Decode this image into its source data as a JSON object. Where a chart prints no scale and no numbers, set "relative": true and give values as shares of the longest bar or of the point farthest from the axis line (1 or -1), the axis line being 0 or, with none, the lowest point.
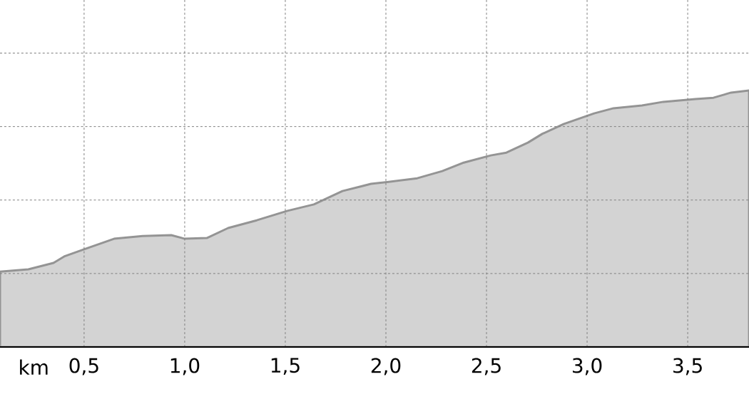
{
  "chart_data": {
    "type": "area",
    "relative": true,
    "xlabel": "km",
    "color": "#d3d3d3",
    "grid": true,
    "x": [
      0.082,
      0.223,
      0.348,
      0.401,
      0.5,
      0.649,
      0.791,
      0.933,
      1.0,
      1.11,
      1.216,
      1.358,
      1.511,
      1.642,
      1.784,
      1.926,
      2.014,
      2.156,
      2.28,
      2.387,
      2.521,
      2.599,
      2.706,
      2.777,
      2.883,
      3.035,
      3.131,
      3.273,
      3.379,
      3.539,
      3.628,
      3.716,
      3.805
    ],
    "values": [
      0.294,
      0.303,
      0.328,
      0.353,
      0.381,
      0.422,
      0.433,
      0.436,
      0.422,
      0.425,
      0.464,
      0.494,
      0.531,
      0.556,
      0.608,
      0.636,
      0.644,
      0.658,
      0.686,
      0.719,
      0.747,
      0.758,
      0.797,
      0.831,
      0.869,
      0.911,
      0.931,
      0.942,
      0.956,
      0.967,
      0.972,
      0.992,
      1.0
    ],
    "xlim": [
      0.082,
      3.805
    ],
    "xticks": [
      {
        "value": 0.5,
        "label": "0,5"
      },
      {
        "value": 1.0,
        "label": "1,0"
      },
      {
        "value": 1.5,
        "label": "1,5"
      },
      {
        "value": 2.0,
        "label": "2,0"
      },
      {
        "value": 2.5,
        "label": "2,5"
      },
      {
        "value": 3.0,
        "label": "3,0"
      },
      {
        "value": 3.5,
        "label": "3,5"
      }
    ]
  }
}
